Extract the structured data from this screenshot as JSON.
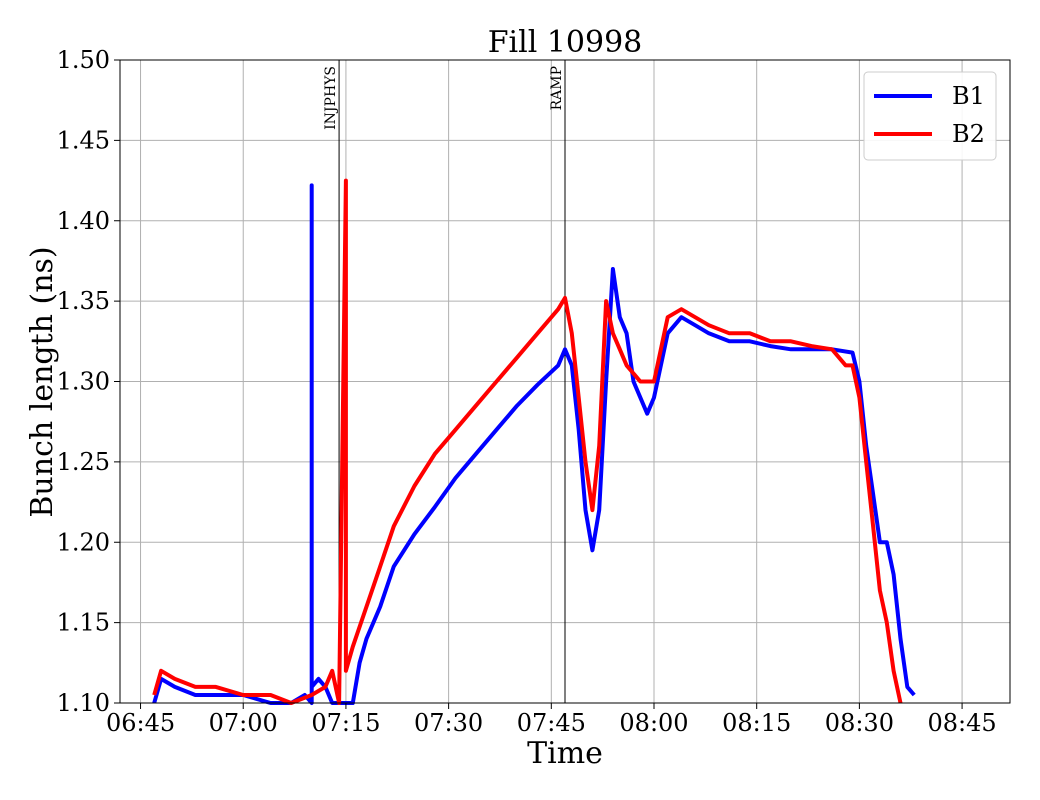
{
  "chart_data": {
    "type": "line",
    "title": "Fill 10998",
    "xlabel": "Time",
    "ylabel": "Bunch length (ns)",
    "xlim": [
      "06:42",
      "08:52"
    ],
    "ylim": [
      1.1,
      1.5
    ],
    "grid": true,
    "legend_position": "top-right",
    "x_ticks": [
      "06:45",
      "07:00",
      "07:15",
      "07:30",
      "07:45",
      "08:00",
      "08:15",
      "08:30",
      "08:45"
    ],
    "y_ticks": [
      "1.10",
      "1.15",
      "1.20",
      "1.25",
      "1.30",
      "1.35",
      "1.40",
      "1.45",
      "1.50"
    ],
    "markers": [
      {
        "label": "INJPHYS",
        "time": "07:14"
      },
      {
        "label": "RAMP",
        "time": "07:47"
      }
    ],
    "series": [
      {
        "name": "B1",
        "color": "#0000ff",
        "points": [
          [
            "06:47",
            1.1
          ],
          [
            "06:48",
            1.115
          ],
          [
            "06:50",
            1.11
          ],
          [
            "06:53",
            1.105
          ],
          [
            "06:56",
            1.105
          ],
          [
            "07:00",
            1.105
          ],
          [
            "07:04",
            1.1
          ],
          [
            "07:07",
            1.1
          ],
          [
            "07:09",
            1.105
          ],
          [
            "07:10",
            1.1
          ],
          [
            "07:10",
            1.422
          ],
          [
            "07:10",
            1.11
          ],
          [
            "07:11",
            1.115
          ],
          [
            "07:12",
            1.11
          ],
          [
            "07:13",
            1.1
          ],
          [
            "07:16",
            1.1
          ],
          [
            "07:17",
            1.125
          ],
          [
            "07:18",
            1.14
          ],
          [
            "07:20",
            1.16
          ],
          [
            "07:22",
            1.185
          ],
          [
            "07:25",
            1.205
          ],
          [
            "07:28",
            1.222
          ],
          [
            "07:31",
            1.24
          ],
          [
            "07:34",
            1.255
          ],
          [
            "07:37",
            1.27
          ],
          [
            "07:40",
            1.285
          ],
          [
            "07:43",
            1.298
          ],
          [
            "07:46",
            1.31
          ],
          [
            "07:47",
            1.32
          ],
          [
            "07:48",
            1.31
          ],
          [
            "07:49",
            1.27
          ],
          [
            "07:50",
            1.22
          ],
          [
            "07:51",
            1.195
          ],
          [
            "07:52",
            1.22
          ],
          [
            "07:53",
            1.3
          ],
          [
            "07:54",
            1.37
          ],
          [
            "07:55",
            1.34
          ],
          [
            "07:56",
            1.33
          ],
          [
            "07:57",
            1.3
          ],
          [
            "07:59",
            1.28
          ],
          [
            "08:00",
            1.29
          ],
          [
            "08:02",
            1.33
          ],
          [
            "08:04",
            1.34
          ],
          [
            "08:06",
            1.335
          ],
          [
            "08:08",
            1.33
          ],
          [
            "08:11",
            1.325
          ],
          [
            "08:14",
            1.325
          ],
          [
            "08:17",
            1.322
          ],
          [
            "08:20",
            1.32
          ],
          [
            "08:23",
            1.32
          ],
          [
            "08:26",
            1.32
          ],
          [
            "08:29",
            1.318
          ],
          [
            "08:30",
            1.3
          ],
          [
            "08:31",
            1.26
          ],
          [
            "08:32",
            1.23
          ],
          [
            "08:33",
            1.2
          ],
          [
            "08:34",
            1.2
          ],
          [
            "08:35",
            1.18
          ],
          [
            "08:36",
            1.14
          ],
          [
            "08:37",
            1.11
          ],
          [
            "08:38",
            1.105
          ]
        ]
      },
      {
        "name": "B2",
        "color": "#ff0000",
        "points": [
          [
            "06:47",
            1.105
          ],
          [
            "06:48",
            1.12
          ],
          [
            "06:50",
            1.115
          ],
          [
            "06:53",
            1.11
          ],
          [
            "06:56",
            1.11
          ],
          [
            "07:00",
            1.105
          ],
          [
            "07:04",
            1.105
          ],
          [
            "07:07",
            1.1
          ],
          [
            "07:10",
            1.105
          ],
          [
            "07:12",
            1.11
          ],
          [
            "07:13",
            1.12
          ],
          [
            "07:14",
            1.1
          ],
          [
            "07:15",
            1.425
          ],
          [
            "07:15",
            1.12
          ],
          [
            "07:16",
            1.135
          ],
          [
            "07:18",
            1.16
          ],
          [
            "07:20",
            1.185
          ],
          [
            "07:22",
            1.21
          ],
          [
            "07:25",
            1.235
          ],
          [
            "07:28",
            1.255
          ],
          [
            "07:31",
            1.27
          ],
          [
            "07:34",
            1.285
          ],
          [
            "07:37",
            1.3
          ],
          [
            "07:40",
            1.315
          ],
          [
            "07:43",
            1.33
          ],
          [
            "07:46",
            1.345
          ],
          [
            "07:47",
            1.352
          ],
          [
            "07:48",
            1.33
          ],
          [
            "07:49",
            1.29
          ],
          [
            "07:50",
            1.25
          ],
          [
            "07:51",
            1.22
          ],
          [
            "07:52",
            1.26
          ],
          [
            "07:53",
            1.35
          ],
          [
            "07:54",
            1.33
          ],
          [
            "07:55",
            1.32
          ],
          [
            "07:56",
            1.31
          ],
          [
            "07:58",
            1.3
          ],
          [
            "08:00",
            1.3
          ],
          [
            "08:02",
            1.34
          ],
          [
            "08:04",
            1.345
          ],
          [
            "08:06",
            1.34
          ],
          [
            "08:08",
            1.335
          ],
          [
            "08:11",
            1.33
          ],
          [
            "08:14",
            1.33
          ],
          [
            "08:17",
            1.325
          ],
          [
            "08:20",
            1.325
          ],
          [
            "08:23",
            1.322
          ],
          [
            "08:26",
            1.32
          ],
          [
            "08:28",
            1.31
          ],
          [
            "08:29",
            1.31
          ],
          [
            "08:30",
            1.29
          ],
          [
            "08:31",
            1.25
          ],
          [
            "08:32",
            1.21
          ],
          [
            "08:33",
            1.17
          ],
          [
            "08:34",
            1.15
          ],
          [
            "08:35",
            1.12
          ],
          [
            "08:36",
            1.1
          ]
        ]
      }
    ]
  }
}
